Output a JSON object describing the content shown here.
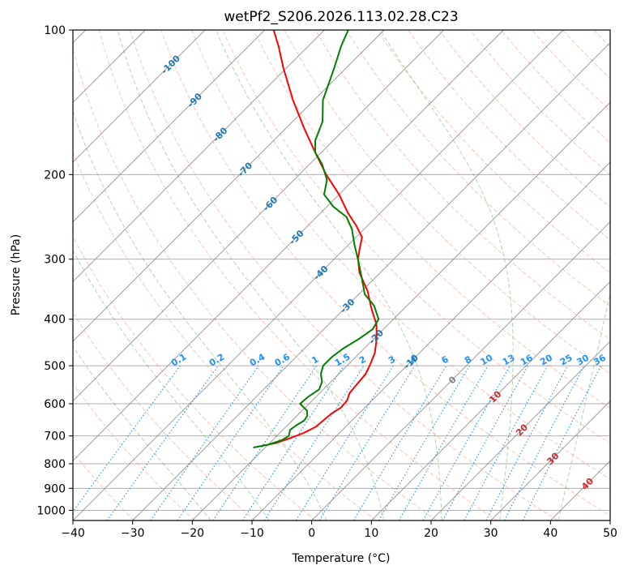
{
  "chart_data": {
    "type": "line",
    "title": "wetPf2_S206.2026.113.02.28.C23",
    "xlabel": "Temperature (°C)",
    "ylabel": "Pressure (hPa)",
    "xlim": [
      -40,
      50
    ],
    "ylim": [
      1050,
      100
    ],
    "yscale": "log",
    "skew_degrees": 45,
    "x_ticks": [
      -40,
      -30,
      -20,
      -10,
      0,
      10,
      20,
      30,
      40,
      50
    ],
    "x_tick_labels": [
      "−40",
      "−30",
      "−20",
      "−10",
      "0",
      "10",
      "20",
      "30",
      "40",
      "50"
    ],
    "y_ticks": [
      100,
      200,
      300,
      400,
      500,
      600,
      700,
      800,
      900,
      1000
    ],
    "y_tick_labels": [
      "100",
      "200",
      "300",
      "400",
      "500",
      "600",
      "700",
      "800",
      "900",
      "1000"
    ],
    "grid": true,
    "isotherms": {
      "values": [
        -130,
        -120,
        -110,
        -100,
        -90,
        -80,
        -70,
        -60,
        -50,
        -40,
        -30,
        -20,
        -10,
        0,
        10,
        20,
        30,
        40,
        50
      ],
      "color": "#808080"
    },
    "isotherm_labels": [
      {
        "text": "-100",
        "t": -100,
        "p": 118
      },
      {
        "text": "-90",
        "t": -90,
        "p": 140
      },
      {
        "text": "-80",
        "t": -80,
        "p": 165
      },
      {
        "text": "-70",
        "t": -70,
        "p": 195
      },
      {
        "text": "-60",
        "t": -60,
        "p": 230
      },
      {
        "text": "-50",
        "t": -50,
        "p": 270
      },
      {
        "text": "-40",
        "t": -40,
        "p": 320
      },
      {
        "text": "-30",
        "t": -30,
        "p": 375
      },
      {
        "text": "-20",
        "t": -20,
        "p": 435
      },
      {
        "text": "-10",
        "t": -10,
        "p": 490
      },
      {
        "text": "0",
        "t": 0,
        "p": 535
      }
    ],
    "dry_adiabats": {
      "theta_k": [
        200,
        210,
        220,
        230,
        240,
        250,
        260,
        270,
        280,
        290,
        300,
        310,
        320,
        330,
        340,
        350,
        360,
        370,
        380,
        390,
        400,
        410,
        420,
        430,
        440,
        450,
        460,
        470,
        480,
        490,
        500,
        520,
        540,
        560,
        580,
        600
      ],
      "color": "#ff7f50"
    },
    "dry_adiabat_labels": [
      {
        "text": "10",
        "t": 10,
        "p": 580
      },
      {
        "text": "20",
        "t": 20,
        "p": 680
      },
      {
        "text": "30",
        "t": 30,
        "p": 780
      },
      {
        "text": "40",
        "t": 40,
        "p": 880
      }
    ],
    "moist_adiabats": {
      "start_temps_c": [
        -20,
        -10,
        0,
        10,
        20,
        30,
        40
      ],
      "color": "#2ca02c"
    },
    "mixing_ratio_lines": {
      "values_g_kg": [
        0.1,
        0.2,
        0.4,
        0.6,
        1,
        1.5,
        2,
        3,
        4,
        6,
        8,
        10,
        13,
        16,
        20,
        25,
        30,
        36
      ],
      "labels": [
        "0.1",
        "0.2",
        "0.4",
        "0.6",
        "1",
        "1.5",
        "2",
        "3",
        "4",
        "6",
        "8",
        "10",
        "13",
        "16",
        "20",
        "25",
        "30",
        "36"
      ],
      "top_pressure": 500,
      "color": "#1e90ff"
    },
    "series": [
      {
        "name": "Temperature",
        "color": "#ff0000",
        "points": [
          {
            "p": 735,
            "t": -21.0
          },
          {
            "p": 725,
            "t": -19.0
          },
          {
            "p": 705,
            "t": -17.2
          },
          {
            "p": 690,
            "t": -16.0
          },
          {
            "p": 670,
            "t": -15.0
          },
          {
            "p": 650,
            "t": -14.8
          },
          {
            "p": 630,
            "t": -14.6
          },
          {
            "p": 610,
            "t": -14.0
          },
          {
            "p": 590,
            "t": -14.2
          },
          {
            "p": 570,
            "t": -15.0
          },
          {
            "p": 550,
            "t": -15.2
          },
          {
            "p": 520,
            "t": -15.5
          },
          {
            "p": 500,
            "t": -16.2
          },
          {
            "p": 470,
            "t": -17.5
          },
          {
            "p": 440,
            "t": -19.5
          },
          {
            "p": 410,
            "t": -22.0
          },
          {
            "p": 380,
            "t": -25.5
          },
          {
            "p": 350,
            "t": -29.0
          },
          {
            "p": 320,
            "t": -33.5
          },
          {
            "p": 300,
            "t": -36.0
          },
          {
            "p": 285,
            "t": -37.5
          },
          {
            "p": 270,
            "t": -39.0
          },
          {
            "p": 255,
            "t": -42.0
          },
          {
            "p": 240,
            "t": -45.5
          },
          {
            "p": 220,
            "t": -50.0
          },
          {
            "p": 200,
            "t": -55.5
          },
          {
            "p": 180,
            "t": -61.0
          },
          {
            "p": 160,
            "t": -67.0
          },
          {
            "p": 140,
            "t": -73.5
          },
          {
            "p": 120,
            "t": -80.5
          },
          {
            "p": 108,
            "t": -85.0
          },
          {
            "p": 100,
            "t": -88.5
          }
        ]
      },
      {
        "name": "Dewpoint",
        "color": "#008000",
        "points": [
          {
            "p": 740,
            "t": -22.0
          },
          {
            "p": 730,
            "t": -20.0
          },
          {
            "p": 715,
            "t": -18.5
          },
          {
            "p": 700,
            "t": -18.0
          },
          {
            "p": 680,
            "t": -18.8
          },
          {
            "p": 665,
            "t": -18.5
          },
          {
            "p": 650,
            "t": -18.0
          },
          {
            "p": 635,
            "t": -18.3
          },
          {
            "p": 620,
            "t": -19.2
          },
          {
            "p": 600,
            "t": -21.5
          },
          {
            "p": 580,
            "t": -21.3
          },
          {
            "p": 560,
            "t": -20.7
          },
          {
            "p": 540,
            "t": -21.5
          },
          {
            "p": 520,
            "t": -23.0
          },
          {
            "p": 500,
            "t": -24.0
          },
          {
            "p": 480,
            "t": -24.0
          },
          {
            "p": 460,
            "t": -23.5
          },
          {
            "p": 440,
            "t": -22.5
          },
          {
            "p": 420,
            "t": -21.8
          },
          {
            "p": 400,
            "t": -22.5
          },
          {
            "p": 375,
            "t": -25.5
          },
          {
            "p": 355,
            "t": -29.0
          },
          {
            "p": 330,
            "t": -32.0
          },
          {
            "p": 300,
            "t": -36.0
          },
          {
            "p": 280,
            "t": -39.0
          },
          {
            "p": 260,
            "t": -42.0
          },
          {
            "p": 245,
            "t": -45.0
          },
          {
            "p": 233,
            "t": -49.0
          },
          {
            "p": 220,
            "t": -52.5
          },
          {
            "p": 205,
            "t": -54.5
          },
          {
            "p": 190,
            "t": -58.0
          },
          {
            "p": 180,
            "t": -61.0
          },
          {
            "p": 170,
            "t": -63.0
          },
          {
            "p": 155,
            "t": -65.0
          },
          {
            "p": 140,
            "t": -68.5
          },
          {
            "p": 120,
            "t": -72.0
          },
          {
            "p": 108,
            "t": -74.5
          },
          {
            "p": 100,
            "t": -76.0
          }
        ]
      }
    ]
  }
}
